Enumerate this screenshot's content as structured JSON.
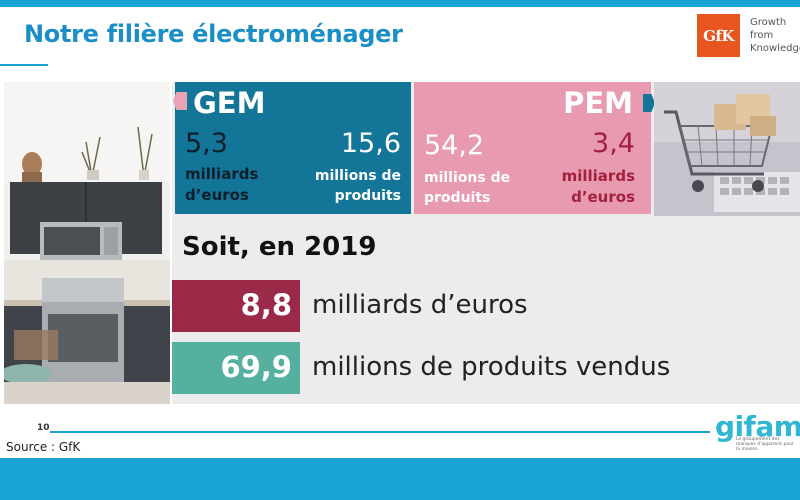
{
  "header": {
    "title": "Notre filière électroménager",
    "logo": {
      "brand": "GfK",
      "tagline": [
        "Growth",
        "from",
        "Knowledge"
      ]
    }
  },
  "gem": {
    "title": "GEM",
    "stat1": {
      "value": "5,3",
      "unit_line1": "milliards",
      "unit_line2": "d’euros"
    },
    "stat2": {
      "value": "15,6",
      "unit_line1": "millions de",
      "unit_line2": "produits"
    }
  },
  "pem": {
    "title": "PEM",
    "stat1": {
      "value": "54,2",
      "unit_line1": "millions de",
      "unit_line2": "produits"
    },
    "stat2": {
      "value": "3,4",
      "unit_line1": "milliards",
      "unit_line2": "d’euros"
    }
  },
  "summary": {
    "heading": "Soit, en 2019",
    "rows": [
      {
        "value": "8,8",
        "label": "milliards d’euros"
      },
      {
        "value": "69,9",
        "label": "millions de produits vendus"
      }
    ]
  },
  "footer": {
    "page_number": "10",
    "source": "Source : GfK",
    "logo": {
      "brand": "gifam",
      "tagline": "Le groupement des marques d’appareils pour la maison"
    }
  },
  "colors": {
    "accent_blue": "#1aa3d5",
    "gem_teal": "#137598",
    "pem_pink": "#e89ab0",
    "euros_crimson": "#9b2948",
    "products_green": "#56b0a0",
    "gfk_orange": "#e8551f"
  }
}
